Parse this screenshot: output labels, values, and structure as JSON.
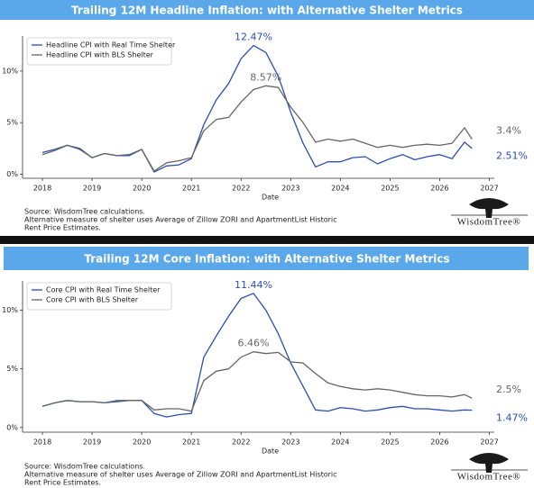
{
  "chart_data": [
    {
      "type": "line",
      "title": "Trailing 12M Headline Inflation: with Alternative Shelter Metrics",
      "xlabel": "Date",
      "x": [
        2018,
        2018.25,
        2018.5,
        2018.75,
        2019,
        2019.25,
        2019.5,
        2019.75,
        2020,
        2020.25,
        2020.5,
        2020.75,
        2021,
        2021.25,
        2021.5,
        2021.75,
        2022,
        2022.25,
        2022.5,
        2022.75,
        2023,
        2023.25,
        2023.5,
        2023.75,
        2024,
        2024.25,
        2024.5,
        2024.75,
        2025,
        2025.25,
        2025.5,
        2025.75,
        2026,
        2026.25,
        2026.5,
        2026.65
      ],
      "series": [
        {
          "name": "Headline CPI with Real Time Shelter",
          "color": "#2a4fb5",
          "peak_label": "12.47%",
          "end_label": "2.51%",
          "values": [
            2.1,
            2.4,
            2.8,
            2.5,
            1.6,
            2.0,
            1.8,
            1.8,
            2.4,
            0.2,
            0.8,
            0.9,
            1.5,
            4.8,
            7.2,
            8.8,
            11.2,
            12.47,
            11.8,
            9.5,
            6.0,
            3.0,
            0.7,
            1.2,
            1.2,
            1.6,
            1.7,
            1.0,
            1.5,
            1.9,
            1.4,
            1.7,
            1.9,
            1.5,
            3.1,
            2.51
          ]
        },
        {
          "name": "Headline CPI with BLS Shelter",
          "color": "#666666",
          "peak_label": "8.57%",
          "end_label": "3.4%",
          "values": [
            1.9,
            2.3,
            2.8,
            2.4,
            1.6,
            2.0,
            1.8,
            1.9,
            2.4,
            0.3,
            1.1,
            1.3,
            1.6,
            4.2,
            5.3,
            5.5,
            7.0,
            8.2,
            8.57,
            8.4,
            6.5,
            5.0,
            3.1,
            3.4,
            3.2,
            3.4,
            3.0,
            2.6,
            2.8,
            2.6,
            2.8,
            2.9,
            2.8,
            3.0,
            4.5,
            3.4
          ]
        }
      ],
      "xlim": [
        2017.6,
        2027.1
      ],
      "xticks": [
        2018,
        2019,
        2020,
        2021,
        2022,
        2023,
        2024,
        2025,
        2026,
        2027
      ],
      "ylim": [
        -0.4,
        13.4
      ],
      "yticks": [
        {
          "value": 0,
          "label": "0%"
        },
        {
          "value": 5,
          "label": "5%"
        },
        {
          "value": 10,
          "label": "10%"
        }
      ],
      "legend": "upper left",
      "notes": [
        "Source: WisdomTree calculations.",
        "Alternative measure of shelter uses Average of Zillow ZORI and ApartmentList Historic",
        "Rent Price Estimates."
      ],
      "logo": "WisdomTree®"
    },
    {
      "type": "line",
      "title": "Trailing 12M Core Inflation: with Alternative Shelter Metrics",
      "xlabel": "Date",
      "x": [
        2018,
        2018.25,
        2018.5,
        2018.75,
        2019,
        2019.25,
        2019.5,
        2019.75,
        2020,
        2020.25,
        2020.5,
        2020.75,
        2021,
        2021.25,
        2021.5,
        2021.75,
        2022,
        2022.25,
        2022.5,
        2022.75,
        2023,
        2023.25,
        2023.5,
        2023.75,
        2024,
        2024.25,
        2024.5,
        2024.75,
        2025,
        2025.25,
        2025.5,
        2025.75,
        2026,
        2026.25,
        2026.5,
        2026.65
      ],
      "series": [
        {
          "name": "Core CPI with Real Time Shelter",
          "color": "#2a4fb5",
          "peak_label": "11.44%",
          "end_label": "1.47%",
          "values": [
            1.8,
            2.1,
            2.3,
            2.2,
            2.2,
            2.1,
            2.2,
            2.3,
            2.3,
            1.2,
            0.9,
            1.1,
            1.2,
            6.0,
            7.8,
            9.5,
            11.0,
            11.44,
            10.0,
            8.0,
            5.5,
            3.5,
            1.5,
            1.4,
            1.7,
            1.6,
            1.4,
            1.5,
            1.7,
            1.8,
            1.6,
            1.6,
            1.5,
            1.4,
            1.5,
            1.47
          ]
        },
        {
          "name": "Core CPI with BLS Shelter",
          "color": "#666666",
          "peak_label": "6.46%",
          "end_label": "2.5%",
          "values": [
            1.8,
            2.1,
            2.3,
            2.2,
            2.2,
            2.1,
            2.3,
            2.3,
            2.3,
            1.5,
            1.6,
            1.6,
            1.4,
            4.0,
            4.8,
            5.0,
            6.0,
            6.46,
            6.3,
            6.4,
            5.6,
            5.5,
            4.6,
            3.8,
            3.5,
            3.3,
            3.2,
            3.3,
            3.2,
            3.0,
            2.8,
            2.7,
            2.7,
            2.6,
            2.8,
            2.5
          ]
        }
      ],
      "xlim": [
        2017.6,
        2027.1
      ],
      "xticks": [
        2018,
        2019,
        2020,
        2021,
        2022,
        2023,
        2024,
        2025,
        2026,
        2027
      ],
      "ylim": [
        -0.4,
        12.5
      ],
      "yticks": [
        {
          "value": 0,
          "label": "0%"
        },
        {
          "value": 5,
          "label": "5%"
        },
        {
          "value": 10,
          "label": "10%"
        }
      ],
      "legend": "upper left",
      "notes": [
        "Source: WisdomTree calculations.",
        "Alternative measure of shelter uses Average of Zillow ZORI and ApartmentList Historic",
        "Rent Price Estimates."
      ],
      "logo": "WisdomTree®"
    }
  ]
}
